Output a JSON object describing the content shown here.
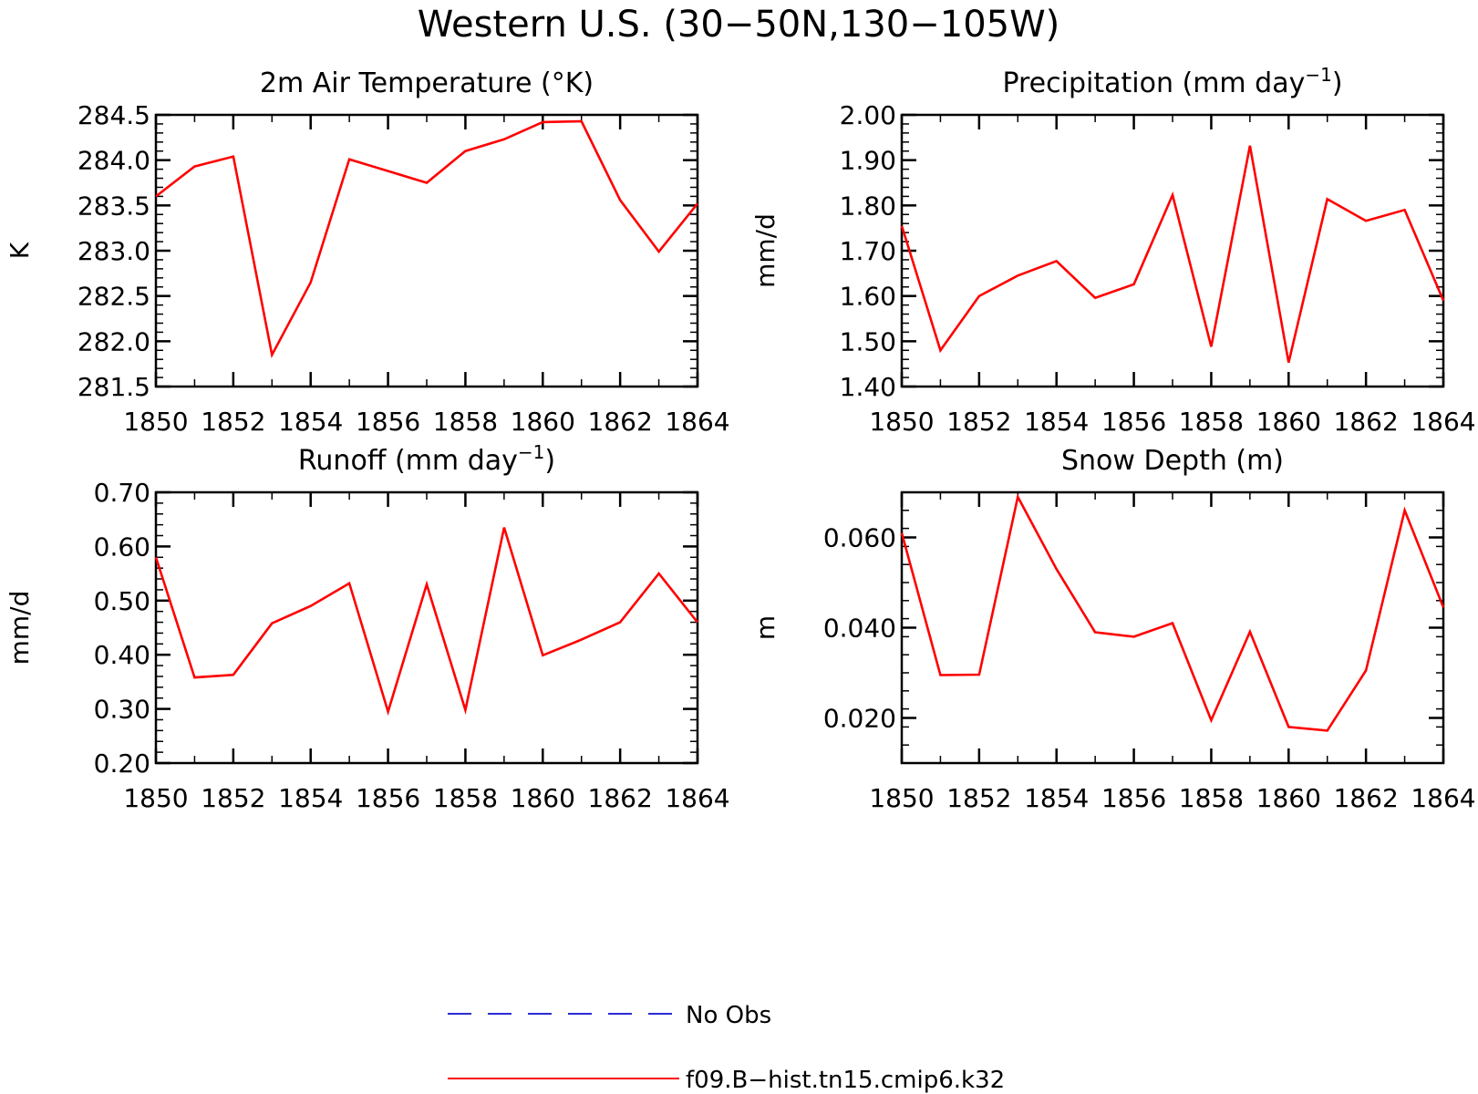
{
  "figure": {
    "title": "Western U.S. (30−50N,130−105W)"
  },
  "legend": [
    {
      "label": "No Obs",
      "color": "#2b2bd6",
      "style": "dashed"
    },
    {
      "label": "f09.B−hist.tn15.cmip6.k32",
      "color": "#ff0000",
      "style": "solid"
    }
  ],
  "chart_data": [
    {
      "type": "line",
      "title": "2m Air Temperature (°K)",
      "title_main": "2m Air Temperature (°K)",
      "title_sup": "",
      "title_post": "",
      "ylabel": "K",
      "xlim": [
        1850,
        1864
      ],
      "ylim": [
        281.5,
        284.5
      ],
      "xticks": [
        1850,
        1852,
        1854,
        1856,
        1858,
        1860,
        1862,
        1864
      ],
      "yticks": [
        281.5,
        282.0,
        282.5,
        283.0,
        283.5,
        284.0,
        284.5
      ],
      "ytick_labels": [
        "281.5",
        "282.0",
        "282.5",
        "283.0",
        "283.5",
        "284.0",
        "284.5"
      ],
      "yminor_step": 0.1,
      "x": [
        1850,
        1851,
        1852,
        1853,
        1854,
        1855,
        1856,
        1857,
        1858,
        1859,
        1860,
        1861,
        1862,
        1863,
        1864
      ],
      "series": [
        {
          "name": "f09.B−hist.tn15.cmip6.k32",
          "color": "#ff0000",
          "values": [
            283.6,
            283.93,
            284.04,
            281.85,
            282.65,
            284.01,
            283.88,
            283.75,
            284.1,
            284.23,
            284.42,
            284.43,
            283.56,
            282.99,
            283.52
          ]
        }
      ]
    },
    {
      "type": "line",
      "title": "Precipitation (mm day⁻¹)",
      "title_main": "Precipitation (mm day",
      "title_sup": "−1",
      "title_post": ")",
      "ylabel": "mm/d",
      "xlim": [
        1850,
        1864
      ],
      "ylim": [
        1.4,
        2.0
      ],
      "xticks": [
        1850,
        1852,
        1854,
        1856,
        1858,
        1860,
        1862,
        1864
      ],
      "yticks": [
        1.4,
        1.5,
        1.6,
        1.7,
        1.8,
        1.9,
        2.0
      ],
      "ytick_labels": [
        "1.40",
        "1.50",
        "1.60",
        "1.70",
        "1.80",
        "1.90",
        "2.00"
      ],
      "yminor_step": 0.02,
      "x": [
        1850,
        1851,
        1852,
        1853,
        1854,
        1855,
        1856,
        1857,
        1858,
        1859,
        1860,
        1861,
        1862,
        1863,
        1864
      ],
      "series": [
        {
          "name": "f09.B−hist.tn15.cmip6.k32",
          "color": "#ff0000",
          "values": [
            1.755,
            1.48,
            1.6,
            1.645,
            1.677,
            1.596,
            1.626,
            1.823,
            1.488,
            1.932,
            1.453,
            1.814,
            1.766,
            1.79,
            1.59
          ]
        }
      ]
    },
    {
      "type": "line",
      "title": "Runoff (mm day⁻¹)",
      "title_main": "Runoff (mm day",
      "title_sup": "−1",
      "title_post": ")",
      "ylabel": "mm/d",
      "xlim": [
        1850,
        1864
      ],
      "ylim": [
        0.2,
        0.7
      ],
      "xticks": [
        1850,
        1852,
        1854,
        1856,
        1858,
        1860,
        1862,
        1864
      ],
      "yticks": [
        0.2,
        0.3,
        0.4,
        0.5,
        0.6,
        0.7
      ],
      "ytick_labels": [
        "0.20",
        "0.30",
        "0.40",
        "0.50",
        "0.60",
        "0.70"
      ],
      "yminor_step": 0.02,
      "x": [
        1850,
        1851,
        1852,
        1853,
        1854,
        1855,
        1856,
        1857,
        1858,
        1859,
        1860,
        1861,
        1862,
        1863,
        1864
      ],
      "series": [
        {
          "name": "f09.B−hist.tn15.cmip6.k32",
          "color": "#ff0000",
          "values": [
            0.58,
            0.358,
            0.363,
            0.458,
            0.49,
            0.532,
            0.295,
            0.53,
            0.298,
            0.635,
            0.399,
            0.428,
            0.46,
            0.55,
            0.46
          ]
        }
      ]
    },
    {
      "type": "line",
      "title": "Snow Depth (m)",
      "title_main": "Snow Depth (m)",
      "title_sup": "",
      "title_post": "",
      "ylabel": "m",
      "xlim": [
        1850,
        1864
      ],
      "ylim": [
        0.01,
        0.07
      ],
      "xticks": [
        1850,
        1852,
        1854,
        1856,
        1858,
        1860,
        1862,
        1864
      ],
      "yticks": [
        0.02,
        0.04,
        0.06
      ],
      "ytick_labels": [
        "0.020",
        "0.040",
        "0.060"
      ],
      "yminor_step": 0.004,
      "x": [
        1850,
        1851,
        1852,
        1853,
        1854,
        1855,
        1856,
        1857,
        1858,
        1859,
        1860,
        1861,
        1862,
        1863,
        1864
      ],
      "series": [
        {
          "name": "f09.B−hist.tn15.cmip6.k32",
          "color": "#ff0000",
          "values": [
            0.061,
            0.0295,
            0.0296,
            0.069,
            0.053,
            0.039,
            0.038,
            0.041,
            0.0195,
            0.0391,
            0.018,
            0.0172,
            0.0305,
            0.066,
            0.0445
          ]
        }
      ]
    }
  ]
}
